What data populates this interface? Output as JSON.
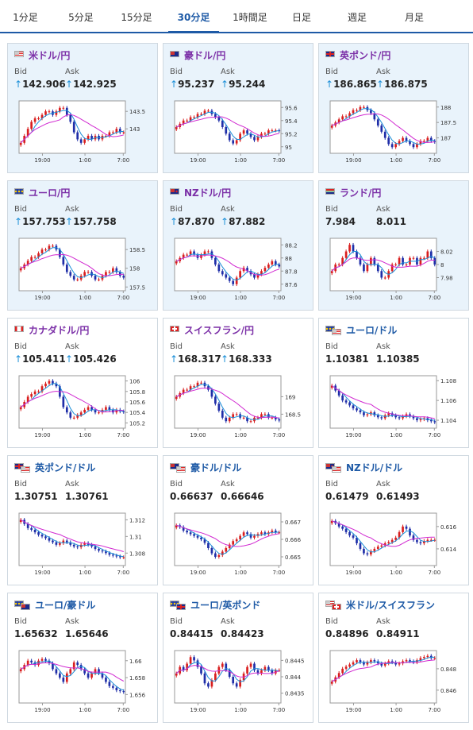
{
  "tabs": [
    {
      "label": "1分足",
      "active": false
    },
    {
      "label": "5分足",
      "active": false
    },
    {
      "label": "15分足",
      "active": false
    },
    {
      "label": "30分足",
      "active": true
    },
    {
      "label": "1時間足",
      "active": false
    },
    {
      "label": "日足",
      "active": false
    },
    {
      "label": "週足",
      "active": false
    },
    {
      "label": "月足",
      "active": false
    }
  ],
  "colors": {
    "accent": "#1e5aa6",
    "up": "#d91e1e",
    "down": "#1f2ea8",
    "ma_fast": "#1a8ed8",
    "ma_slow": "#d12ad1",
    "title_jpy": "#7b2fa7",
    "title_other": "#1e5aa6",
    "arrow": "#1a8ed8"
  },
  "pairs": [
    {
      "name": "米ドル/円",
      "flags": [
        "us-flag"
      ],
      "bid_label": "Bid",
      "ask_label": "Ask",
      "bid": "142.906",
      "ask": "142.925",
      "bid_arrow": "↑",
      "ask_arrow": "↑",
      "chart_data": {
        "type": "candlestick",
        "x_ticks": [
          "19:00",
          "1:00",
          "7:00"
        ],
        "y_ticks": [
          "143.5",
          "143"
        ],
        "y_range": [
          142.3,
          143.8
        ],
        "closes": [
          142.6,
          142.8,
          143.0,
          143.2,
          143.3,
          143.3,
          143.4,
          143.5,
          143.5,
          143.4,
          143.5,
          143.6,
          143.6,
          143.4,
          143.2,
          142.9,
          142.7,
          142.6,
          142.7,
          142.8,
          142.7,
          142.8,
          142.7,
          142.8,
          142.8,
          142.9,
          142.9,
          143.0,
          142.9,
          142.9
        ]
      }
    },
    {
      "name": "豪ドル/円",
      "flags": [
        "au-flag"
      ],
      "bid_label": "Bid",
      "ask_label": "Ask",
      "bid": "95.237",
      "ask": "95.244",
      "bid_arrow": "↑",
      "ask_arrow": "↑",
      "chart_data": {
        "type": "candlestick",
        "x_ticks": [
          "19:00",
          "1:00",
          "7:00"
        ],
        "y_ticks": [
          "95.6",
          "95.4",
          "95.2",
          "95"
        ],
        "y_range": [
          94.9,
          95.7
        ],
        "closes": [
          95.3,
          95.35,
          95.4,
          95.4,
          95.45,
          95.45,
          95.5,
          95.5,
          95.55,
          95.55,
          95.5,
          95.45,
          95.4,
          95.3,
          95.2,
          95.1,
          95.05,
          95.1,
          95.2,
          95.25,
          95.2,
          95.15,
          95.1,
          95.15,
          95.2,
          95.2,
          95.25,
          95.25,
          95.25,
          95.24
        ]
      }
    },
    {
      "name": "英ポンド/円",
      "flags": [
        "gb-flag"
      ],
      "bid_label": "Bid",
      "ask_label": "Ask",
      "bid": "186.865",
      "ask": "186.875",
      "bid_arrow": "↑",
      "ask_arrow": "↑",
      "chart_data": {
        "type": "candlestick",
        "x_ticks": [
          "19:00",
          "1:00",
          "7:00"
        ],
        "y_ticks": [
          "188",
          "187.5",
          "187"
        ],
        "y_range": [
          186.5,
          188.2
        ],
        "closes": [
          187.4,
          187.5,
          187.6,
          187.7,
          187.7,
          187.8,
          187.9,
          187.9,
          188.0,
          188.0,
          187.9,
          187.8,
          187.6,
          187.4,
          187.2,
          187.0,
          186.8,
          186.7,
          186.8,
          186.9,
          187.0,
          186.9,
          186.8,
          186.7,
          186.8,
          186.9,
          186.9,
          187.0,
          186.9,
          186.87
        ]
      }
    },
    {
      "name": "ユーロ/円",
      "flags": [
        "eu-flag"
      ],
      "bid_label": "Bid",
      "ask_label": "Ask",
      "bid": "157.753",
      "ask": "157.758",
      "bid_arrow": "↑",
      "ask_arrow": "↑",
      "chart_data": {
        "type": "candlestick",
        "x_ticks": [
          "19:00",
          "1:00",
          "7:00"
        ],
        "y_ticks": [
          "158.5",
          "158",
          "157.5"
        ],
        "y_range": [
          157.4,
          158.8
        ],
        "closes": [
          158.0,
          158.1,
          158.2,
          158.3,
          158.3,
          158.4,
          158.5,
          158.5,
          158.6,
          158.6,
          158.5,
          158.3,
          158.1,
          157.9,
          157.8,
          157.7,
          157.7,
          157.8,
          157.9,
          157.9,
          157.8,
          157.7,
          157.7,
          157.8,
          157.9,
          157.9,
          158.0,
          157.9,
          157.8,
          157.75
        ]
      }
    },
    {
      "name": "NZドル/円",
      "flags": [
        "nz-flag"
      ],
      "bid_label": "Bid",
      "ask_label": "Ask",
      "bid": "87.870",
      "ask": "87.882",
      "bid_arrow": "↑",
      "ask_arrow": "↑",
      "chart_data": {
        "type": "candlestick",
        "x_ticks": [
          "19:00",
          "1:00",
          "7:00"
        ],
        "y_ticks": [
          "88.2",
          "88",
          "87.8",
          "87.6"
        ],
        "y_range": [
          87.5,
          88.3
        ],
        "closes": [
          87.95,
          88.0,
          88.05,
          88.05,
          88.1,
          88.05,
          88.0,
          88.05,
          88.1,
          88.1,
          88.0,
          87.9,
          87.8,
          87.75,
          87.7,
          87.65,
          87.6,
          87.7,
          87.8,
          87.85,
          87.8,
          87.75,
          87.7,
          87.75,
          87.8,
          87.85,
          87.9,
          87.95,
          87.9,
          87.87
        ]
      }
    },
    {
      "name": "ランド/円",
      "flags": [
        "za-flag"
      ],
      "bid_label": "Bid",
      "ask_label": "Ask",
      "bid": "7.984",
      "ask": "8.011",
      "bid_arrow": "",
      "ask_arrow": "",
      "chart_data": {
        "type": "candlestick",
        "x_ticks": [
          "19:00",
          "1:00",
          "7:00"
        ],
        "y_ticks": [
          "8.02",
          "8",
          "7.98"
        ],
        "y_range": [
          7.96,
          8.04
        ],
        "closes": [
          7.99,
          8.0,
          8.0,
          8.01,
          8.02,
          8.03,
          8.02,
          8.01,
          8.0,
          7.99,
          8.0,
          8.01,
          8.0,
          7.99,
          7.98,
          7.98,
          7.99,
          8.0,
          8.0,
          8.01,
          8.0,
          8.0,
          8.01,
          8.01,
          8.0,
          8.01,
          8.01,
          8.02,
          8.01,
          8.0
        ]
      }
    },
    {
      "name": "カナダドル/円",
      "flags": [
        "ca-flag"
      ],
      "bid_label": "Bid",
      "ask_label": "Ask",
      "bid": "105.411",
      "ask": "105.426",
      "bid_arrow": "↑",
      "ask_arrow": "↑",
      "chart_data": {
        "type": "candlestick",
        "x_ticks": [
          "19:00",
          "1:00",
          "7:00"
        ],
        "y_ticks": [
          "106",
          "105.8",
          "105.6",
          "105.4",
          "105.2"
        ],
        "y_range": [
          105.1,
          106.1
        ],
        "closes": [
          105.5,
          105.6,
          105.7,
          105.75,
          105.8,
          105.8,
          105.9,
          105.95,
          106.0,
          105.95,
          105.9,
          105.7,
          105.5,
          105.4,
          105.3,
          105.3,
          105.35,
          105.4,
          105.45,
          105.5,
          105.45,
          105.4,
          105.4,
          105.45,
          105.5,
          105.45,
          105.4,
          105.45,
          105.42,
          105.41
        ]
      }
    },
    {
      "name": "スイスフラン/円",
      "flags": [
        "ch-flag"
      ],
      "bid_label": "Bid",
      "ask_label": "Ask",
      "bid": "168.317",
      "ask": "168.333",
      "bid_arrow": "↑",
      "ask_arrow": "↑",
      "chart_data": {
        "type": "candlestick",
        "x_ticks": [
          "19:00",
          "1:00",
          "7:00"
        ],
        "y_ticks": [
          "169",
          "168.5"
        ],
        "y_range": [
          168.1,
          169.6
        ],
        "closes": [
          169.0,
          169.1,
          169.2,
          169.2,
          169.3,
          169.3,
          169.4,
          169.4,
          169.3,
          169.2,
          169.0,
          168.8,
          168.6,
          168.4,
          168.3,
          168.4,
          168.5,
          168.5,
          168.4,
          168.4,
          168.3,
          168.3,
          168.4,
          168.4,
          168.5,
          168.5,
          168.4,
          168.4,
          168.35,
          168.32
        ]
      }
    },
    {
      "name": "ユーロ/ドル",
      "flags": [
        "eu-flag",
        "us-flag"
      ],
      "bid_label": "Bid",
      "ask_label": "Ask",
      "bid": "1.10381",
      "ask": "1.10385",
      "bid_arrow": "",
      "ask_arrow": "",
      "chart_data": {
        "type": "candlestick",
        "x_ticks": [
          "19:00",
          "1:00",
          "7:00"
        ],
        "y_ticks": [
          "1.108",
          "1.106",
          "1.104"
        ],
        "y_range": [
          1.1032,
          1.1085
        ],
        "closes": [
          1.1075,
          1.107,
          1.1065,
          1.106,
          1.1058,
          1.1055,
          1.1052,
          1.105,
          1.1048,
          1.1045,
          1.1046,
          1.1048,
          1.1045,
          1.1043,
          1.1042,
          1.1045,
          1.1047,
          1.1045,
          1.1043,
          1.1042,
          1.1044,
          1.1046,
          1.1044,
          1.1042,
          1.104,
          1.1041,
          1.1042,
          1.104,
          1.1039,
          1.1038
        ]
      }
    },
    {
      "name": "英ポンド/ドル",
      "flags": [
        "gb-flag",
        "us-flag"
      ],
      "bid_label": "Bid",
      "ask_label": "Ask",
      "bid": "1.30751",
      "ask": "1.30761",
      "bid_arrow": "",
      "ask_arrow": "",
      "chart_data": {
        "type": "candlestick",
        "x_ticks": [
          "19:00",
          "1:00",
          "7:00"
        ],
        "y_ticks": [
          "1.312",
          "1.31",
          "1.308"
        ],
        "y_range": [
          1.3065,
          1.3128
        ],
        "closes": [
          1.312,
          1.3115,
          1.311,
          1.3108,
          1.3105,
          1.3102,
          1.31,
          1.3098,
          1.3095,
          1.3093,
          1.309,
          1.3092,
          1.3095,
          1.3093,
          1.309,
          1.3088,
          1.3087,
          1.309,
          1.3092,
          1.309,
          1.3088,
          1.3085,
          1.3083,
          1.3082,
          1.308,
          1.3078,
          1.3077,
          1.3076,
          1.3075,
          1.3075
        ]
      }
    },
    {
      "name": "豪ドル/ドル",
      "flags": [
        "au-flag",
        "us-flag"
      ],
      "bid_label": "Bid",
      "ask_label": "Ask",
      "bid": "0.66637",
      "ask": "0.66646",
      "bid_arrow": "",
      "ask_arrow": "",
      "chart_data": {
        "type": "candlestick",
        "x_ticks": [
          "19:00",
          "1:00",
          "7:00"
        ],
        "y_ticks": [
          "0.667",
          "0.666",
          "0.665"
        ],
        "y_range": [
          0.6645,
          0.6675
        ],
        "closes": [
          0.6668,
          0.6667,
          0.6665,
          0.6664,
          0.6663,
          0.6662,
          0.6661,
          0.666,
          0.6658,
          0.6655,
          0.6652,
          0.665,
          0.6651,
          0.6653,
          0.6655,
          0.6657,
          0.6659,
          0.666,
          0.6662,
          0.6664,
          0.6663,
          0.6661,
          0.6662,
          0.6663,
          0.6664,
          0.6663,
          0.6664,
          0.6665,
          0.6664,
          0.6664
        ]
      }
    },
    {
      "name": "NZドル/ドル",
      "flags": [
        "nz-flag",
        "us-flag"
      ],
      "bid_label": "Bid",
      "ask_label": "Ask",
      "bid": "0.61479",
      "ask": "0.61493",
      "bid_arrow": "",
      "ask_arrow": "",
      "chart_data": {
        "type": "candlestick",
        "x_ticks": [
          "19:00",
          "1:00",
          "7:00"
        ],
        "y_ticks": [
          "0.616",
          "0.614"
        ],
        "y_range": [
          0.6125,
          0.6172
        ],
        "closes": [
          0.6165,
          0.6163,
          0.616,
          0.6158,
          0.6155,
          0.6152,
          0.615,
          0.6145,
          0.614,
          0.6136,
          0.6135,
          0.6138,
          0.614,
          0.6142,
          0.6143,
          0.6145,
          0.6146,
          0.6148,
          0.615,
          0.6155,
          0.616,
          0.6158,
          0.6152,
          0.6148,
          0.6146,
          0.6145,
          0.6147,
          0.6148,
          0.6148,
          0.6148
        ]
      }
    },
    {
      "name": "ユーロ/豪ドル",
      "flags": [
        "eu-flag",
        "au-flag"
      ],
      "bid_label": "Bid",
      "ask_label": "Ask",
      "bid": "1.65632",
      "ask": "1.65646",
      "bid_arrow": "",
      "ask_arrow": "",
      "chart_data": {
        "type": "candlestick",
        "x_ticks": [
          "19:00",
          "1:00",
          "7:00"
        ],
        "y_ticks": [
          "1.66",
          "1.658",
          "1.656"
        ],
        "y_range": [
          1.655,
          1.6612
        ],
        "closes": [
          1.659,
          1.6595,
          1.66,
          1.6598,
          1.6595,
          1.66,
          1.6602,
          1.66,
          1.6597,
          1.659,
          1.6585,
          1.658,
          1.6575,
          1.6585,
          1.659,
          1.6598,
          1.6595,
          1.659,
          1.6585,
          1.658,
          1.6585,
          1.659,
          1.6585,
          1.658,
          1.6575,
          1.657,
          1.6568,
          1.6565,
          1.6564,
          1.6563
        ]
      }
    },
    {
      "name": "ユーロ/英ポンド",
      "flags": [
        "eu-flag",
        "gb-flag"
      ],
      "bid_label": "Bid",
      "ask_label": "Ask",
      "bid": "0.84415",
      "ask": "0.84423",
      "bid_arrow": "",
      "ask_arrow": "",
      "chart_data": {
        "type": "candlestick",
        "x_ticks": [
          "19:00",
          "1:00",
          "7:00"
        ],
        "y_ticks": [
          "0.8445",
          "0.844",
          "0.8435"
        ],
        "y_range": [
          0.8432,
          0.8448
        ],
        "closes": [
          0.8441,
          0.8443,
          0.8442,
          0.8444,
          0.8446,
          0.8445,
          0.8443,
          0.8441,
          0.8438,
          0.8437,
          0.8439,
          0.8441,
          0.8443,
          0.8444,
          0.8442,
          0.844,
          0.8438,
          0.8437,
          0.8439,
          0.8441,
          0.8443,
          0.8444,
          0.8442,
          0.8441,
          0.8442,
          0.8443,
          0.8442,
          0.8441,
          0.8442,
          0.8442
        ]
      }
    },
    {
      "name": "米ドル/スイスフラン",
      "flags": [
        "us-flag",
        "ch-flag"
      ],
      "bid_label": "Bid",
      "ask_label": "Ask",
      "bid": "0.84896",
      "ask": "0.84911",
      "bid_arrow": "",
      "ask_arrow": "",
      "chart_data": {
        "type": "candlestick",
        "x_ticks": [
          "19:00",
          "1:00",
          "7:00"
        ],
        "y_ticks": [
          "0.848",
          "0.846"
        ],
        "y_range": [
          0.8448,
          0.8497
        ],
        "closes": [
          0.8468,
          0.8472,
          0.8476,
          0.848,
          0.8482,
          0.8484,
          0.8486,
          0.8488,
          0.8486,
          0.8484,
          0.8486,
          0.8488,
          0.8487,
          0.8485,
          0.8483,
          0.8485,
          0.8487,
          0.8486,
          0.8484,
          0.8485,
          0.8487,
          0.8488,
          0.8487,
          0.8486,
          0.8488,
          0.849,
          0.8491,
          0.8492,
          0.849,
          0.849
        ]
      }
    }
  ]
}
